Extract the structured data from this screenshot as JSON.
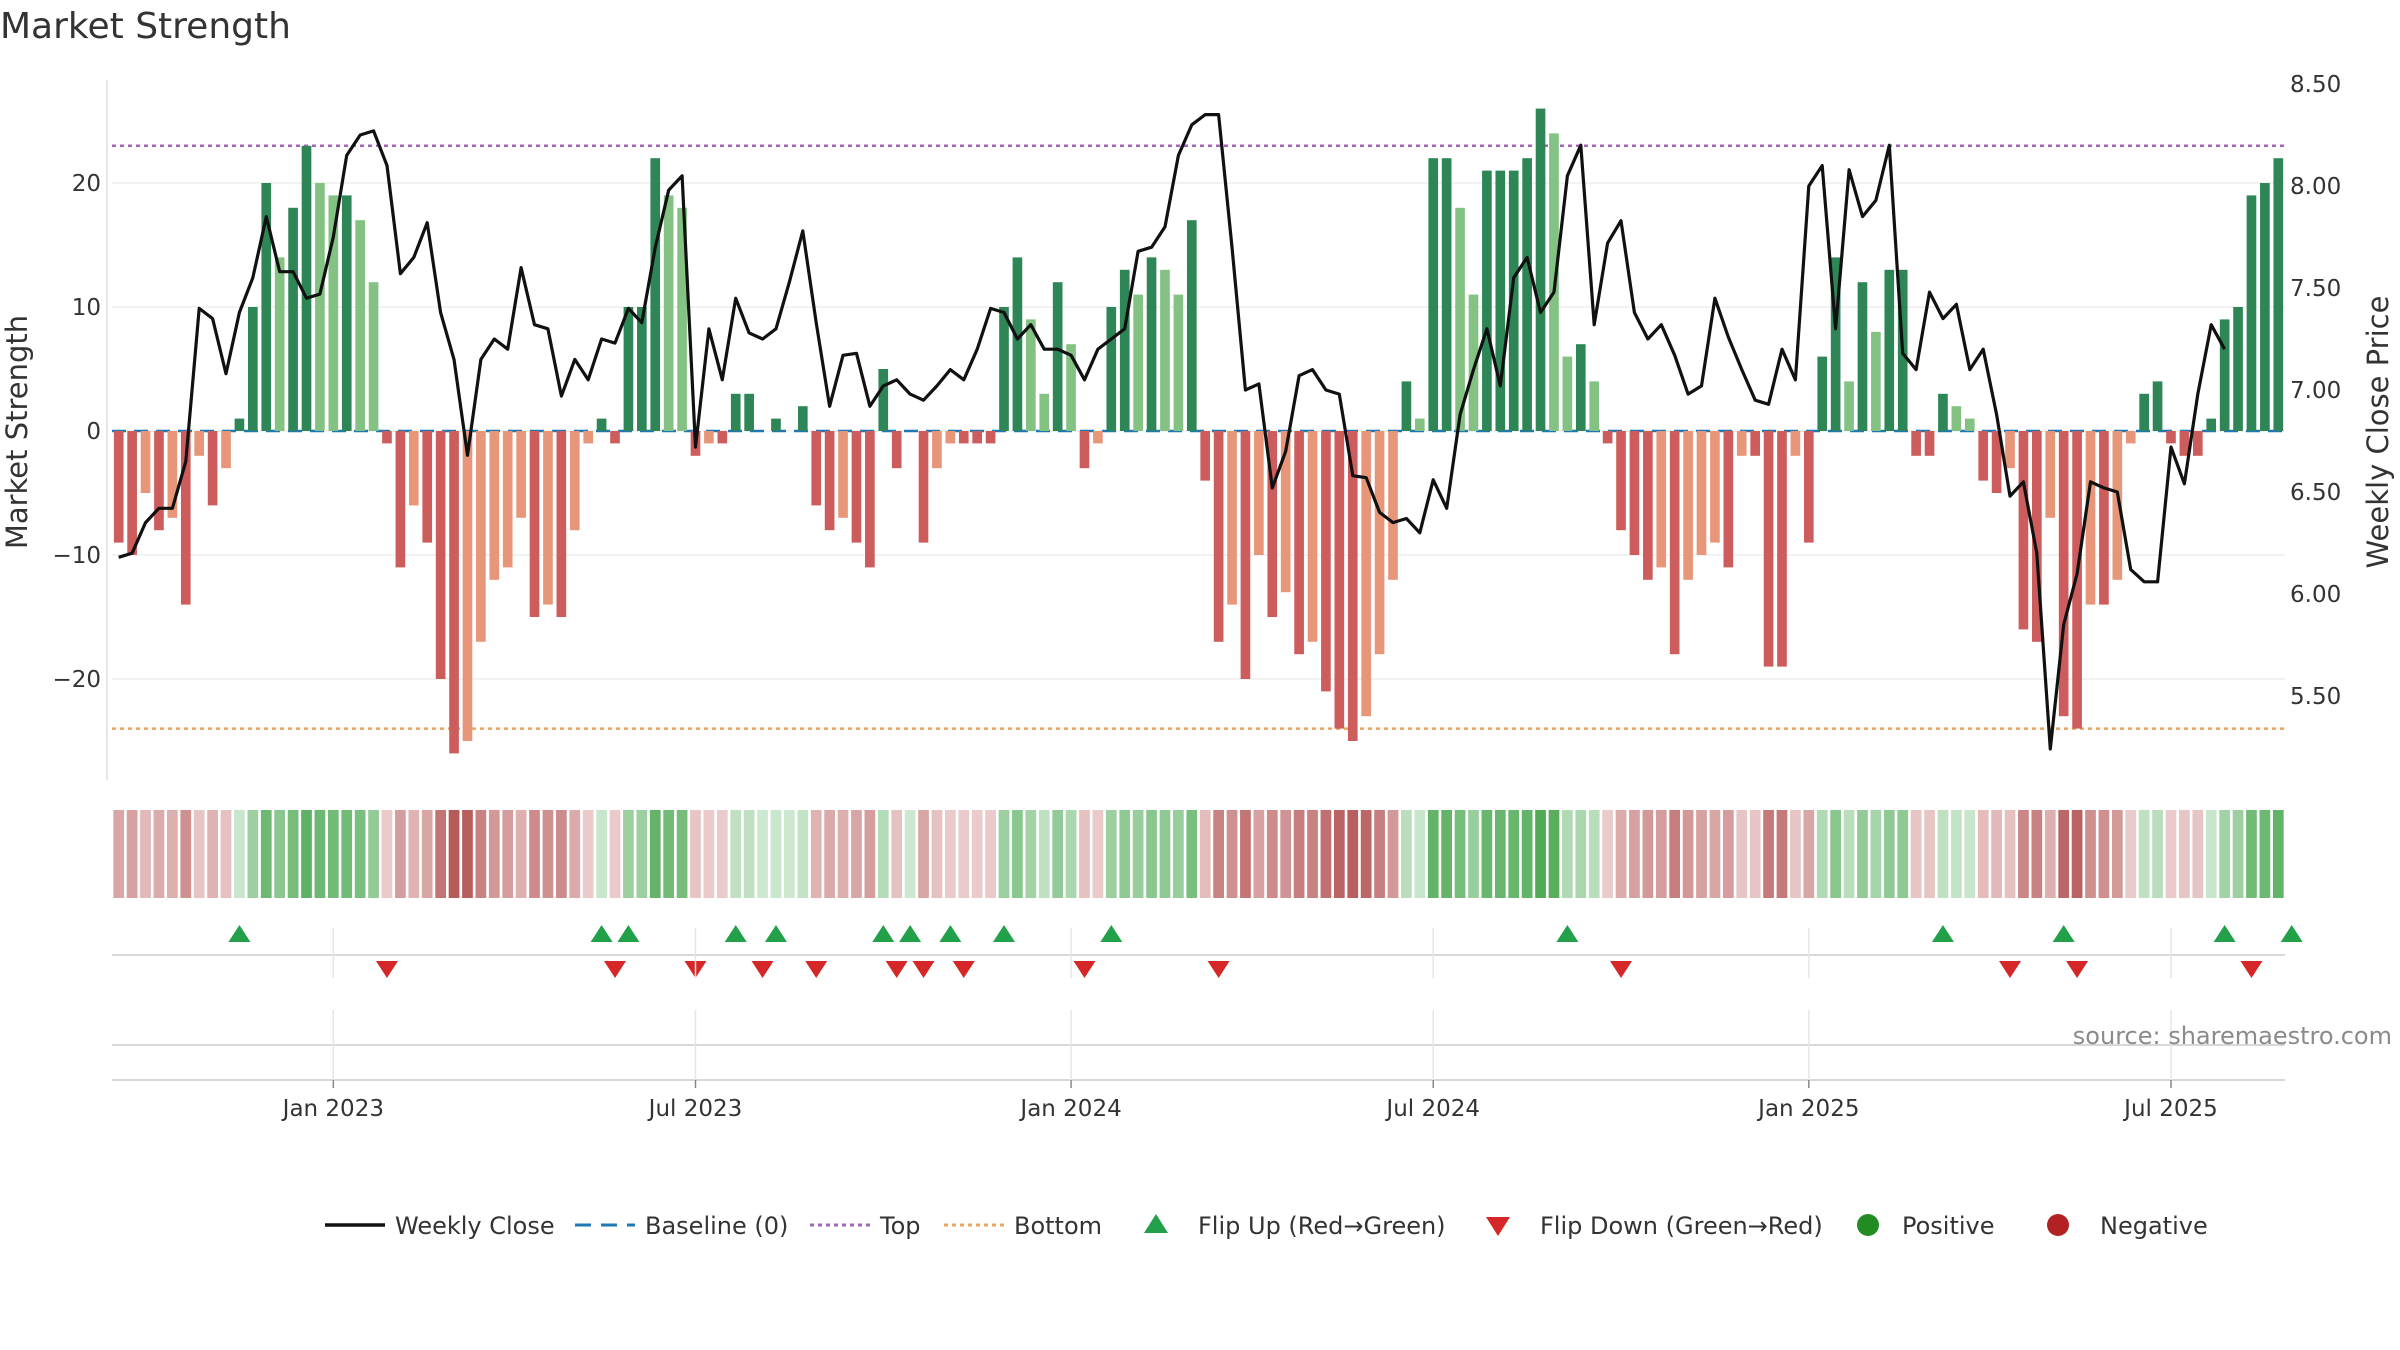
{
  "chart_data": {
    "type": "bar",
    "title": "Market Strength",
    "ylabel_left": "Market Strength",
    "ylabel_right": "Weekly Close Price",
    "ylim_left": [
      -28,
      28
    ],
    "ylim_right": [
      5.0,
      8.5
    ],
    "yticks_left": [
      {
        "v": 20,
        "label": "20"
      },
      {
        "v": 10,
        "label": "10"
      },
      {
        "v": 0,
        "label": "0"
      },
      {
        "v": -10,
        "label": "−10"
      },
      {
        "v": -20,
        "label": "−20"
      }
    ],
    "yticks_right": [
      {
        "v": 8.5,
        "label": "8.50"
      },
      {
        "v": 8.0,
        "label": "8.00"
      },
      {
        "v": 7.5,
        "label": "7.50"
      },
      {
        "v": 7.0,
        "label": "7.00"
      },
      {
        "v": 6.5,
        "label": "6.50"
      },
      {
        "v": 6.0,
        "label": "6.00"
      },
      {
        "v": 5.5,
        "label": "5.50"
      }
    ],
    "xticks": [
      {
        "i": 16,
        "label": "Jan 2023"
      },
      {
        "i": 43,
        "label": "Jul 2023"
      },
      {
        "i": 71,
        "label": "Jan 2024"
      },
      {
        "i": 98,
        "label": "Jul 2024"
      },
      {
        "i": 126,
        "label": "Jan 2025"
      },
      {
        "i": 153,
        "label": "Jul 2025"
      }
    ],
    "top_line": 23,
    "bottom_line": -24,
    "baseline": 0,
    "strength": [
      -9,
      -10,
      -5,
      -8,
      -7,
      -14,
      -2,
      -6,
      -3,
      1,
      10,
      20,
      14,
      18,
      23,
      20,
      19,
      19,
      17,
      12,
      -1,
      -11,
      -6,
      -9,
      -20,
      -26,
      -25,
      -17,
      -12,
      -11,
      -7,
      -15,
      -14,
      -15,
      -8,
      -1,
      1,
      -1,
      10,
      10,
      22,
      19,
      18,
      -2,
      -1,
      -1,
      3,
      3,
      0,
      1,
      0,
      2,
      -6,
      -8,
      -7,
      -9,
      -11,
      5,
      -3,
      0,
      -9,
      -3,
      -1,
      -1,
      -1,
      -1,
      10,
      14,
      9,
      3,
      12,
      7,
      -3,
      -1,
      10,
      13,
      11,
      14,
      13,
      11,
      17,
      -4,
      -17,
      -14,
      -20,
      -10,
      -15,
      -13,
      -18,
      -17,
      -21,
      -24,
      -25,
      -23,
      -18,
      -12,
      4,
      1,
      22,
      22,
      18,
      11,
      21,
      21,
      21,
      22,
      26,
      24,
      6,
      7,
      4,
      -1,
      -8,
      -10,
      -12,
      -11,
      -18,
      -12,
      -10,
      -9,
      -11,
      -2,
      -2,
      -19,
      -19,
      -2,
      -9,
      6,
      14,
      4,
      12,
      8,
      13,
      13,
      -2,
      -2,
      3,
      2,
      1,
      -4,
      -5,
      -3,
      -16,
      -17,
      -7,
      -23,
      -24,
      -14,
      -14,
      -12,
      -1,
      3,
      4,
      -1,
      -2,
      -2,
      1,
      9,
      10,
      19,
      20,
      22
    ],
    "close": [
      6.18,
      6.2,
      6.35,
      6.42,
      6.42,
      6.65,
      7.4,
      7.35,
      7.08,
      7.38,
      7.55,
      7.85,
      7.58,
      7.58,
      7.45,
      7.47,
      7.75,
      8.15,
      8.25,
      8.27,
      8.1,
      7.57,
      7.65,
      7.82,
      7.38,
      7.15,
      6.68,
      7.15,
      7.25,
      7.2,
      7.6,
      7.32,
      7.3,
      6.97,
      7.15,
      7.05,
      7.25,
      7.23,
      7.4,
      7.33,
      7.7,
      7.98,
      8.05,
      6.72,
      7.3,
      7.05,
      7.45,
      7.28,
      7.25,
      7.3,
      7.53,
      7.78,
      7.33,
      6.92,
      7.17,
      7.18,
      6.92,
      7.02,
      7.05,
      6.98,
      6.95,
      7.02,
      7.1,
      7.05,
      7.2,
      7.4,
      7.38,
      7.25,
      7.32,
      7.2,
      7.2,
      7.17,
      7.05,
      7.2,
      7.25,
      7.3,
      7.68,
      7.7,
      7.8,
      8.15,
      8.3,
      8.35,
      8.35,
      7.7,
      7.0,
      7.03,
      6.52,
      6.7,
      7.07,
      7.1,
      7.0,
      6.98,
      6.58,
      6.57,
      6.4,
      6.35,
      6.37,
      6.3,
      6.56,
      6.42,
      6.88,
      7.1,
      7.3,
      7.02,
      7.55,
      7.65,
      7.38,
      7.48,
      8.05,
      8.2,
      7.32,
      7.72,
      7.83,
      7.38,
      7.25,
      7.32,
      7.17,
      6.98,
      7.02,
      7.45,
      7.26,
      7.1,
      6.95,
      6.93,
      7.2,
      7.05,
      8.0,
      8.1,
      7.3,
      8.08,
      7.85,
      7.93,
      8.2,
      7.18,
      7.1,
      7.48,
      7.35,
      7.42,
      7.1,
      7.2,
      6.88,
      6.48,
      6.55,
      6.2,
      5.24,
      5.85,
      6.1,
      6.55,
      6.52,
      6.5,
      6.12,
      6.06,
      6.06,
      6.72,
      6.54,
      6.98,
      7.32,
      7.2
    ],
    "hist_strip": "pppppppppggggggggggggppppppppppppppppggggggppppgggggpppppppppppppgggggggggggggggggpppppppppppppppgggggggggggggggggpppppppppppppppgggggggggpppppppppppppggggggggggggg",
    "flip_up_idx": [
      9,
      36,
      38,
      46,
      49,
      57,
      59,
      62,
      66,
      74,
      108,
      136,
      145,
      157,
      162
    ],
    "flip_down_idx": [
      20,
      37,
      43,
      48,
      52,
      58,
      60,
      63,
      72,
      82,
      112,
      141,
      146,
      159
    ],
    "legend": [
      "Weekly Close",
      "Baseline (0)",
      "Top",
      "Bottom",
      "Flip Up (Red→Green)",
      "Flip Down (Green→Red)",
      "Positive",
      "Negative"
    ],
    "source": "source: sharemaestro.com"
  },
  "colors": {
    "pos_strong": "#2e8657",
    "pos_light": "#83c283",
    "neg_strong": "#cd5c5c",
    "neg_light": "#e8967a",
    "line": "#111111",
    "top": "#a366b8",
    "bottom": "#eda55c",
    "baseline": "#1f77b4",
    "flip_up": "#22a04a",
    "flip_down": "#d62728",
    "positive_dot": "#228b22",
    "negative_dot": "#b22222"
  }
}
